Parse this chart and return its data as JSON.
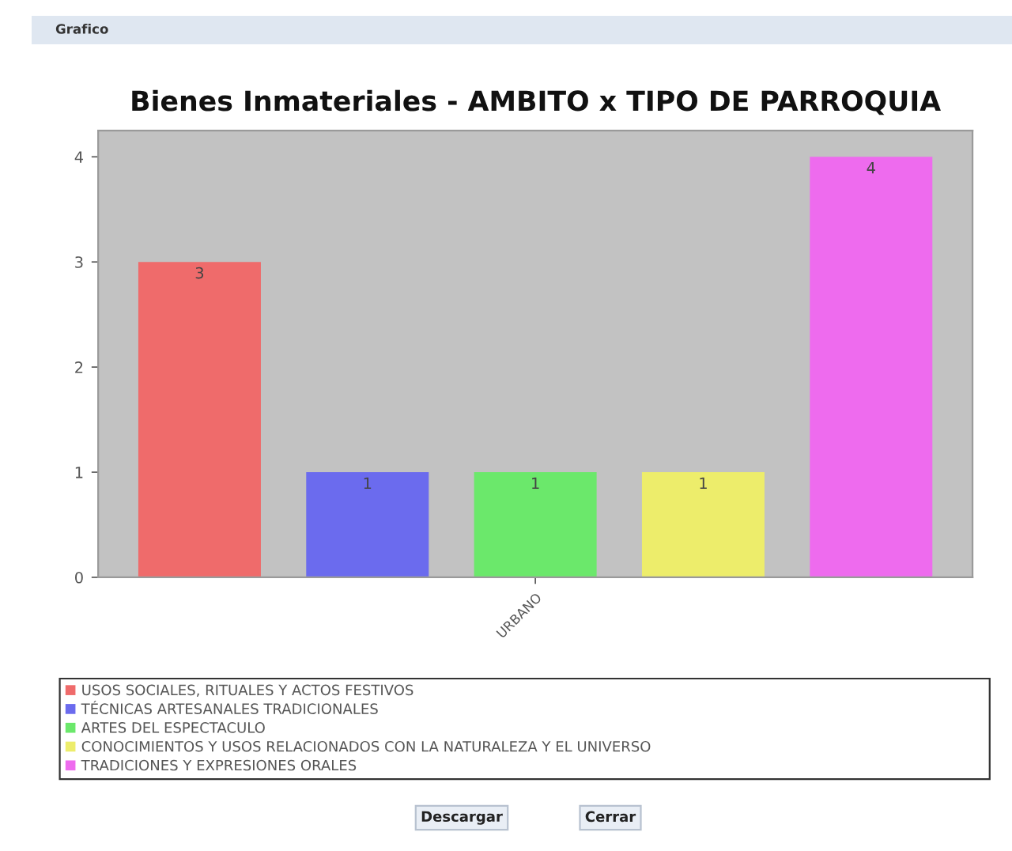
{
  "chart_data": {
    "type": "bar",
    "title": "Bienes Inmateriales - AMBITO x TIPO DE PARROQUIA",
    "categories": [
      "URBANO"
    ],
    "series": [
      {
        "name": "USOS SOCIALES, RITUALES Y ACTOS FESTIVOS",
        "color": "#ef6b6b",
        "values": [
          3
        ]
      },
      {
        "name": "TÉCNICAS ARTESANALES TRADICIONALES",
        "color": "#6b6bee",
        "values": [
          1
        ]
      },
      {
        "name": "ARTES DEL ESPECTACULO",
        "color": "#6be86b",
        "values": [
          1
        ]
      },
      {
        "name": "CONOCIMIENTOS Y USOS RELACIONADOS CON LA NATURALEZA Y EL UNIVERSO",
        "color": "#eded6b",
        "values": [
          1
        ]
      },
      {
        "name": "TRADICIONES Y EXPRESIONES ORALES",
        "color": "#ee6bee",
        "values": [
          4
        ]
      }
    ],
    "ylim": [
      0,
      4.25
    ],
    "yticks": [
      0,
      1,
      2,
      3,
      4
    ],
    "data_labels": true,
    "legend": "bottom",
    "annotations": [
      "Grafico",
      "Descargar",
      "Cerrar"
    ]
  }
}
